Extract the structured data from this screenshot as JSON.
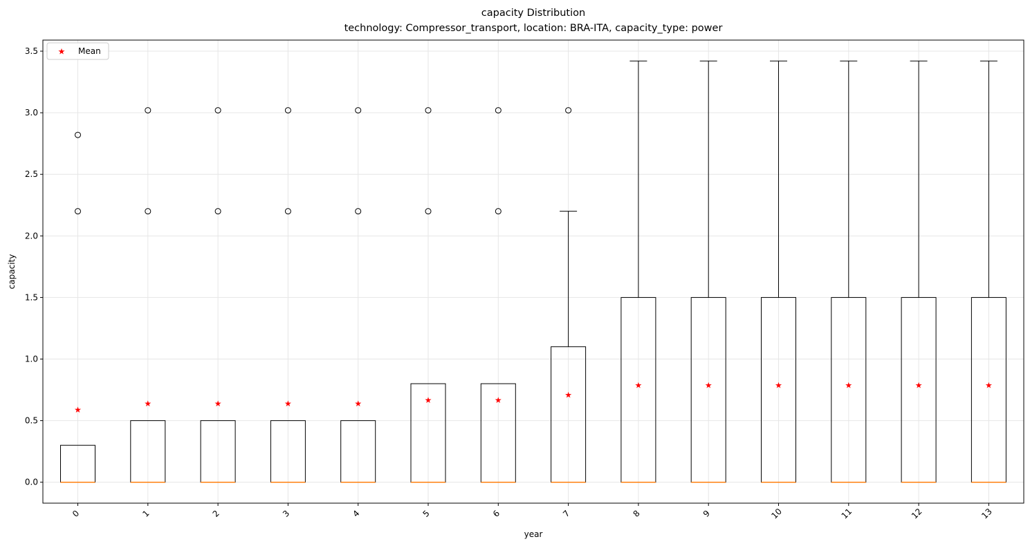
{
  "chart_data": {
    "type": "box",
    "title": "capacity Distribution",
    "subtitle": "technology: Compressor_transport, location: BRA-ITA, capacity_type: power",
    "xlabel": "year",
    "ylabel": "capacity",
    "ylim": [
      -0.17,
      3.59
    ],
    "yticks": [
      "0.0",
      "0.5",
      "1.0",
      "1.5",
      "2.0",
      "2.5",
      "3.0",
      "3.5"
    ],
    "ytick_values": [
      0.0,
      0.5,
      1.0,
      1.5,
      2.0,
      2.5,
      3.0,
      3.5
    ],
    "grid": true,
    "legend": {
      "position": "top-left",
      "entries": [
        "Mean"
      ]
    },
    "colors": {
      "box": "#000000",
      "median": "#ff7f0e",
      "mean": "#ff0000",
      "grid": "#e6e6e6"
    },
    "categories": [
      "0",
      "1",
      "2",
      "3",
      "4",
      "5",
      "6",
      "7",
      "8",
      "9",
      "10",
      "11",
      "12",
      "13"
    ],
    "boxes": [
      {
        "year": "0",
        "whislo": 0.0,
        "q1": 0.0,
        "median": 0.0,
        "q3": 0.3,
        "whishi": 0.3,
        "mean": 0.59,
        "fliers": [
          2.2,
          2.82
        ]
      },
      {
        "year": "1",
        "whislo": 0.0,
        "q1": 0.0,
        "median": 0.0,
        "q3": 0.5,
        "whishi": 0.5,
        "mean": 0.64,
        "fliers": [
          2.2,
          3.02
        ]
      },
      {
        "year": "2",
        "whislo": 0.0,
        "q1": 0.0,
        "median": 0.0,
        "q3": 0.5,
        "whishi": 0.5,
        "mean": 0.64,
        "fliers": [
          2.2,
          3.02
        ]
      },
      {
        "year": "3",
        "whislo": 0.0,
        "q1": 0.0,
        "median": 0.0,
        "q3": 0.5,
        "whishi": 0.5,
        "mean": 0.64,
        "fliers": [
          2.2,
          3.02
        ]
      },
      {
        "year": "4",
        "whislo": 0.0,
        "q1": 0.0,
        "median": 0.0,
        "q3": 0.5,
        "whishi": 0.5,
        "mean": 0.64,
        "fliers": [
          2.2,
          3.02
        ]
      },
      {
        "year": "5",
        "whislo": 0.0,
        "q1": 0.0,
        "median": 0.0,
        "q3": 0.8,
        "whishi": 0.8,
        "mean": 0.67,
        "fliers": [
          2.2,
          3.02
        ]
      },
      {
        "year": "6",
        "whislo": 0.0,
        "q1": 0.0,
        "median": 0.0,
        "q3": 0.8,
        "whishi": 0.8,
        "mean": 0.67,
        "fliers": [
          2.2,
          3.02
        ]
      },
      {
        "year": "7",
        "whislo": 0.0,
        "q1": 0.0,
        "median": 0.0,
        "q3": 1.1,
        "whishi": 2.2,
        "mean": 0.71,
        "fliers": [
          3.02
        ]
      },
      {
        "year": "8",
        "whislo": 0.0,
        "q1": 0.0,
        "median": 0.0,
        "q3": 1.5,
        "whishi": 3.42,
        "mean": 0.79,
        "fliers": []
      },
      {
        "year": "9",
        "whislo": 0.0,
        "q1": 0.0,
        "median": 0.0,
        "q3": 1.5,
        "whishi": 3.42,
        "mean": 0.79,
        "fliers": []
      },
      {
        "year": "10",
        "whislo": 0.0,
        "q1": 0.0,
        "median": 0.0,
        "q3": 1.5,
        "whishi": 3.42,
        "mean": 0.79,
        "fliers": []
      },
      {
        "year": "11",
        "whislo": 0.0,
        "q1": 0.0,
        "median": 0.0,
        "q3": 1.5,
        "whishi": 3.42,
        "mean": 0.79,
        "fliers": []
      },
      {
        "year": "12",
        "whislo": 0.0,
        "q1": 0.0,
        "median": 0.0,
        "q3": 1.5,
        "whishi": 3.42,
        "mean": 0.79,
        "fliers": []
      },
      {
        "year": "13",
        "whislo": 0.0,
        "q1": 0.0,
        "median": 0.0,
        "q3": 1.5,
        "whishi": 3.42,
        "mean": 0.79,
        "fliers": []
      }
    ]
  }
}
